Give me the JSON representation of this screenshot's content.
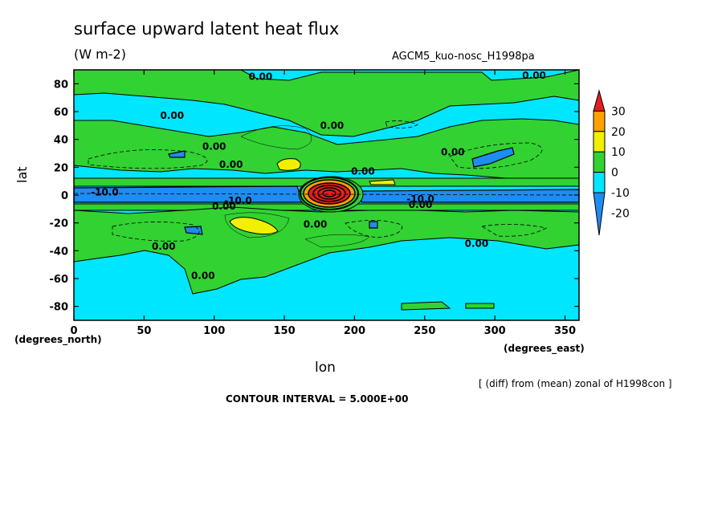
{
  "chart_data": {
    "type": "heatmap",
    "title": "surface upward latent heat flux",
    "units": "(W m-2)",
    "model": "AGCM5_kuo-nosc_H1998pa",
    "xlabel": "lon",
    "ylabel": "lat",
    "x_unit": "(degrees_north)",
    "y_unit": "(degrees_east)",
    "diff_note": "[ (diff) from (mean) zonal of H1998con ]",
    "contour_interval": "CONTOUR INTERVAL = 5.000E+00",
    "xlim": [
      0,
      360
    ],
    "ylim": [
      -90,
      90
    ],
    "x_ticks": [
      0,
      50,
      100,
      150,
      200,
      250,
      300,
      350
    ],
    "y_ticks": [
      -80,
      -60,
      -40,
      -20,
      0,
      20,
      40,
      60,
      80
    ],
    "colorbar": {
      "levels": [
        -20,
        -10,
        0,
        10,
        20,
        30
      ],
      "colors": [
        "#1e8cf0",
        "#00e6ff",
        "#32d232",
        "#f0f000",
        "#ffa000",
        "#e61e1e"
      ]
    },
    "contour_labels": [
      {
        "text": "0.00",
        "lon": 133,
        "lat": 85
      },
      {
        "text": "0.00",
        "lon": 328,
        "lat": 86
      },
      {
        "text": "0.00",
        "lon": 70,
        "lat": 57
      },
      {
        "text": "0.00",
        "lon": 184,
        "lat": 50
      },
      {
        "text": "0.00",
        "lon": 100,
        "lat": 35
      },
      {
        "text": "0.00",
        "lon": 112,
        "lat": 22
      },
      {
        "text": "0.00",
        "lon": 270,
        "lat": 31
      },
      {
        "text": "0.00",
        "lon": 206,
        "lat": 17
      },
      {
        "text": "-10.0",
        "lon": 22,
        "lat": 2
      },
      {
        "text": "-10.0",
        "lon": 117,
        "lat": -4
      },
      {
        "text": "0.00",
        "lon": 107,
        "lat": -8
      },
      {
        "text": "-10.0",
        "lon": 247,
        "lat": -3
      },
      {
        "text": "0.00",
        "lon": 247,
        "lat": -7
      },
      {
        "text": "0.00",
        "lon": 172,
        "lat": -21
      },
      {
        "text": "0.00",
        "lon": 64,
        "lat": -37
      },
      {
        "text": "0.00",
        "lon": 287,
        "lat": -35
      },
      {
        "text": "0.00",
        "lon": 92,
        "lat": -58
      }
    ]
  }
}
